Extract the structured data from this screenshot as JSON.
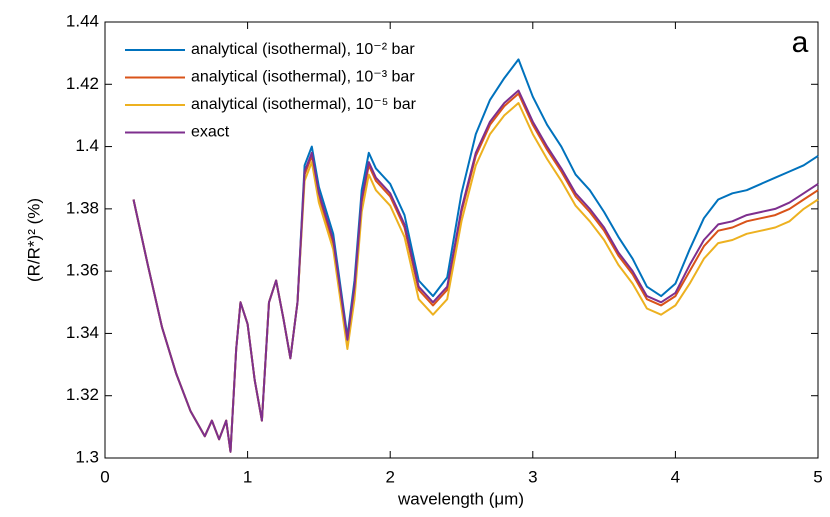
{
  "chart_data": {
    "type": "line",
    "xlabel": "wavelength (μm)",
    "ylabel": "(R/R*)² (%)",
    "annotation": "a",
    "legend": "upper-left",
    "x": [
      0.2,
      0.3,
      0.4,
      0.5,
      0.6,
      0.7,
      0.75,
      0.8,
      0.85,
      0.88,
      0.92,
      0.95,
      1.0,
      1.05,
      1.1,
      1.15,
      1.2,
      1.25,
      1.3,
      1.35,
      1.4,
      1.45,
      1.5,
      1.6,
      1.7,
      1.75,
      1.8,
      1.85,
      1.9,
      2.0,
      2.1,
      2.2,
      2.3,
      2.4,
      2.5,
      2.6,
      2.7,
      2.8,
      2.9,
      3.0,
      3.1,
      3.2,
      3.3,
      3.4,
      3.5,
      3.6,
      3.7,
      3.8,
      3.9,
      4.0,
      4.1,
      4.2,
      4.3,
      4.4,
      4.5,
      4.6,
      4.7,
      4.8,
      4.9,
      5.0
    ],
    "series": [
      {
        "name": "analytical (isothermal), 10⁻² bar",
        "color": "#0072bd",
        "values": [
          1.383,
          1.362,
          1.342,
          1.327,
          1.315,
          1.307,
          1.312,
          1.306,
          1.312,
          1.302,
          1.335,
          1.35,
          1.343,
          1.325,
          1.312,
          1.35,
          1.357,
          1.345,
          1.332,
          1.35,
          1.394,
          1.4,
          1.387,
          1.372,
          1.339,
          1.357,
          1.386,
          1.398,
          1.393,
          1.388,
          1.378,
          1.357,
          1.352,
          1.358,
          1.385,
          1.404,
          1.415,
          1.422,
          1.428,
          1.416,
          1.407,
          1.4,
          1.391,
          1.386,
          1.379,
          1.371,
          1.364,
          1.355,
          1.352,
          1.356,
          1.367,
          1.377,
          1.383,
          1.385,
          1.386,
          1.388,
          1.39,
          1.392,
          1.394,
          1.397
        ]
      },
      {
        "name": "analytical (isothermal), 10⁻³ bar",
        "color": "#d95319",
        "values": [
          1.383,
          1.362,
          1.342,
          1.327,
          1.315,
          1.307,
          1.312,
          1.306,
          1.312,
          1.302,
          1.335,
          1.35,
          1.343,
          1.325,
          1.312,
          1.35,
          1.357,
          1.345,
          1.332,
          1.35,
          1.391,
          1.397,
          1.384,
          1.369,
          1.337,
          1.354,
          1.382,
          1.394,
          1.389,
          1.384,
          1.374,
          1.354,
          1.349,
          1.354,
          1.379,
          1.397,
          1.407,
          1.413,
          1.417,
          1.407,
          1.399,
          1.392,
          1.384,
          1.379,
          1.373,
          1.365,
          1.359,
          1.351,
          1.349,
          1.352,
          1.36,
          1.368,
          1.373,
          1.374,
          1.376,
          1.377,
          1.378,
          1.38,
          1.383,
          1.386
        ]
      },
      {
        "name": "analytical (isothermal), 10⁻⁵ bar",
        "color": "#edb120",
        "values": [
          1.383,
          1.362,
          1.342,
          1.327,
          1.315,
          1.307,
          1.312,
          1.306,
          1.312,
          1.302,
          1.335,
          1.35,
          1.343,
          1.325,
          1.312,
          1.35,
          1.357,
          1.345,
          1.332,
          1.35,
          1.389,
          1.395,
          1.382,
          1.367,
          1.335,
          1.351,
          1.379,
          1.391,
          1.386,
          1.381,
          1.371,
          1.351,
          1.346,
          1.351,
          1.376,
          1.394,
          1.404,
          1.41,
          1.414,
          1.404,
          1.396,
          1.389,
          1.381,
          1.376,
          1.37,
          1.362,
          1.356,
          1.348,
          1.346,
          1.349,
          1.356,
          1.364,
          1.369,
          1.37,
          1.372,
          1.373,
          1.374,
          1.376,
          1.38,
          1.383
        ]
      },
      {
        "name": "exact",
        "color": "#7e2f8e",
        "values": [
          1.383,
          1.362,
          1.342,
          1.327,
          1.315,
          1.307,
          1.312,
          1.306,
          1.312,
          1.302,
          1.335,
          1.35,
          1.343,
          1.325,
          1.312,
          1.35,
          1.357,
          1.345,
          1.332,
          1.35,
          1.392,
          1.398,
          1.385,
          1.37,
          1.338,
          1.355,
          1.383,
          1.395,
          1.39,
          1.385,
          1.375,
          1.355,
          1.35,
          1.355,
          1.38,
          1.398,
          1.408,
          1.414,
          1.418,
          1.408,
          1.4,
          1.393,
          1.385,
          1.38,
          1.374,
          1.366,
          1.36,
          1.352,
          1.35,
          1.353,
          1.362,
          1.37,
          1.375,
          1.376,
          1.378,
          1.379,
          1.38,
          1.382,
          1.385,
          1.388
        ]
      }
    ],
    "xlim": [
      0,
      5
    ],
    "xticks": [
      0,
      1,
      2,
      3,
      4,
      5
    ],
    "ylim": [
      1.3,
      1.44
    ],
    "yticks": [
      1.3,
      1.32,
      1.34,
      1.36,
      1.38,
      1.4,
      1.42,
      1.44
    ]
  }
}
